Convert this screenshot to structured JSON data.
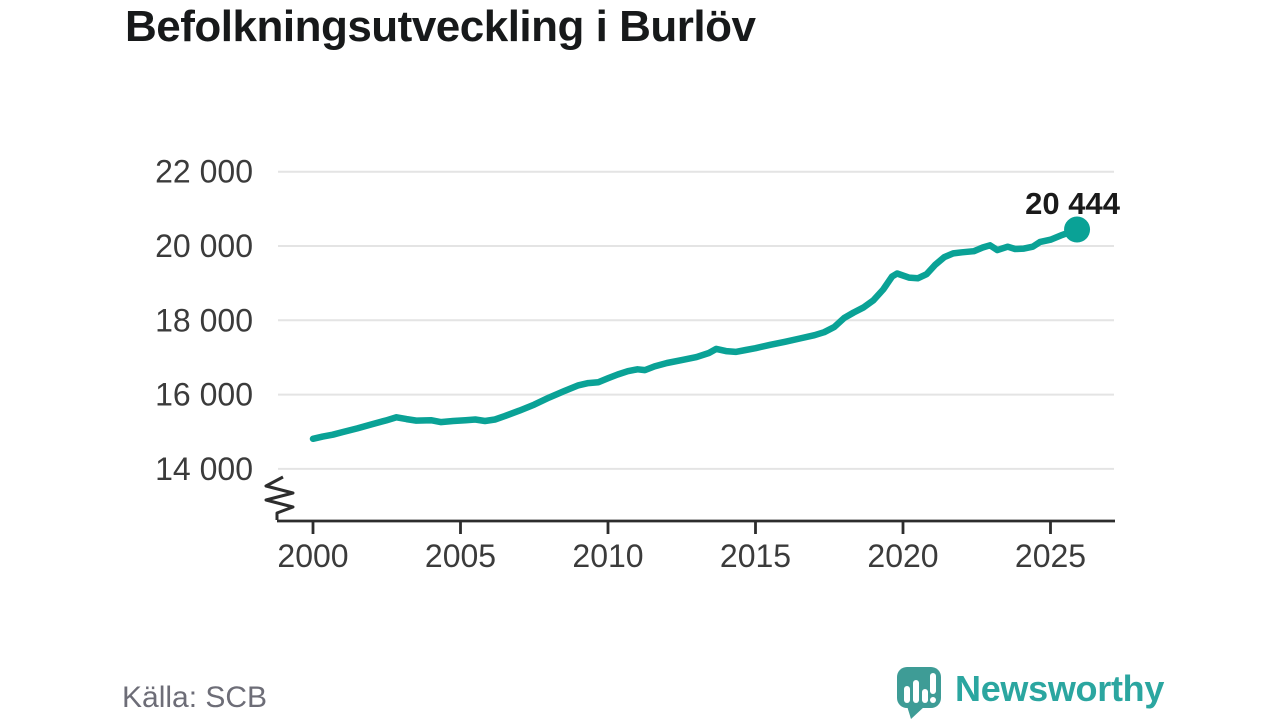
{
  "title": "Befolkningsutveckling i Burlöv",
  "footer": {
    "source": "Källa: SCB",
    "brand": "Newsworthy"
  },
  "colors": {
    "line": "#0aa296",
    "grid": "#e4e4e4",
    "axis": "#2d2d2d",
    "tick_text": "#3b3b3b",
    "title_text": "#17191a",
    "annotation_text": "#1a1a1a",
    "source_text": "#6d6d77",
    "logo_bubble": "#3e9c96",
    "logo_glyph": "#ffffff",
    "wordmark": "#2ba6a0"
  },
  "chart_data": {
    "type": "line",
    "title": "Befolkningsutveckling i Burlöv",
    "source": "SCB",
    "grid": true,
    "y_axis_break": true,
    "x_range": [
      2000,
      2025.9
    ],
    "ylim_display": [
      13300,
      22600
    ],
    "x_ticks": [
      {
        "value": 2000,
        "label": "2000"
      },
      {
        "value": 2005,
        "label": "2005"
      },
      {
        "value": 2010,
        "label": "2010"
      },
      {
        "value": 2015,
        "label": "2015"
      },
      {
        "value": 2020,
        "label": "2020"
      },
      {
        "value": 2025,
        "label": "2025"
      }
    ],
    "y_ticks": [
      {
        "value": 22000,
        "label": "22 000"
      },
      {
        "value": 20000,
        "label": "20 000"
      },
      {
        "value": 18000,
        "label": "18 000"
      },
      {
        "value": 16000,
        "label": "16 000"
      },
      {
        "value": 14000,
        "label": "14 000"
      }
    ],
    "end_point": {
      "x": 2025.9,
      "value": 20444,
      "label": "20 444"
    },
    "series": [
      {
        "name": "population",
        "points": [
          [
            2000.0,
            14810
          ],
          [
            2000.33,
            14870
          ],
          [
            2000.67,
            14920
          ],
          [
            2001.0,
            14990
          ],
          [
            2001.5,
            15090
          ],
          [
            2002.0,
            15200
          ],
          [
            2002.5,
            15310
          ],
          [
            2002.83,
            15390
          ],
          [
            2003.17,
            15340
          ],
          [
            2003.5,
            15300
          ],
          [
            2004.0,
            15310
          ],
          [
            2004.33,
            15260
          ],
          [
            2004.75,
            15290
          ],
          [
            2005.17,
            15310
          ],
          [
            2005.5,
            15330
          ],
          [
            2005.83,
            15290
          ],
          [
            2006.17,
            15330
          ],
          [
            2006.5,
            15420
          ],
          [
            2007.0,
            15570
          ],
          [
            2007.5,
            15730
          ],
          [
            2008.0,
            15920
          ],
          [
            2008.5,
            16090
          ],
          [
            2009.0,
            16250
          ],
          [
            2009.33,
            16310
          ],
          [
            2009.67,
            16330
          ],
          [
            2010.0,
            16440
          ],
          [
            2010.33,
            16540
          ],
          [
            2010.67,
            16630
          ],
          [
            2011.0,
            16680
          ],
          [
            2011.25,
            16660
          ],
          [
            2011.58,
            16760
          ],
          [
            2012.0,
            16850
          ],
          [
            2012.5,
            16930
          ],
          [
            2013.0,
            17010
          ],
          [
            2013.42,
            17120
          ],
          [
            2013.67,
            17230
          ],
          [
            2014.0,
            17170
          ],
          [
            2014.33,
            17150
          ],
          [
            2014.67,
            17200
          ],
          [
            2015.0,
            17250
          ],
          [
            2015.5,
            17340
          ],
          [
            2016.0,
            17420
          ],
          [
            2016.5,
            17510
          ],
          [
            2017.0,
            17600
          ],
          [
            2017.33,
            17680
          ],
          [
            2017.67,
            17820
          ],
          [
            2018.0,
            18060
          ],
          [
            2018.33,
            18210
          ],
          [
            2018.67,
            18350
          ],
          [
            2019.0,
            18540
          ],
          [
            2019.33,
            18830
          ],
          [
            2019.63,
            19180
          ],
          [
            2019.8,
            19260
          ],
          [
            2020.2,
            19150
          ],
          [
            2020.5,
            19130
          ],
          [
            2020.8,
            19240
          ],
          [
            2021.1,
            19500
          ],
          [
            2021.4,
            19700
          ],
          [
            2021.7,
            19800
          ],
          [
            2022.0,
            19830
          ],
          [
            2022.4,
            19860
          ],
          [
            2022.7,
            19960
          ],
          [
            2022.95,
            20020
          ],
          [
            2023.2,
            19890
          ],
          [
            2023.55,
            19980
          ],
          [
            2023.8,
            19920
          ],
          [
            2024.1,
            19930
          ],
          [
            2024.4,
            19980
          ],
          [
            2024.65,
            20110
          ],
          [
            2025.0,
            20170
          ],
          [
            2025.4,
            20300
          ],
          [
            2025.9,
            20444
          ]
        ]
      }
    ]
  }
}
